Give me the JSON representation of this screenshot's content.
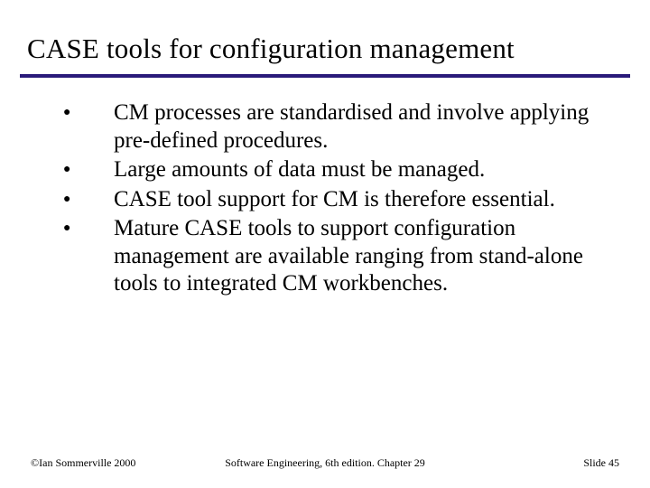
{
  "colors": {
    "rule": "#2a1a7a",
    "background": "#ffffff",
    "text": "#000000"
  },
  "typography": {
    "title_fontsize": 31,
    "body_fontsize": 25,
    "footer_fontsize": 12,
    "font_family": "Times New Roman"
  },
  "title": "CASE tools for configuration management",
  "bullets": [
    "CM processes are standardised and involve applying pre-defined procedures.",
    "Large amounts of data must be managed.",
    "CASE tool support for CM is therefore essential.",
    "Mature CASE tools to support configuration management are available ranging from stand-alone tools to integrated CM workbenches."
  ],
  "footer": {
    "left": "©Ian Sommerville 2000",
    "center": "Software Engineering, 6th edition. Chapter 29",
    "right": "Slide 45"
  }
}
